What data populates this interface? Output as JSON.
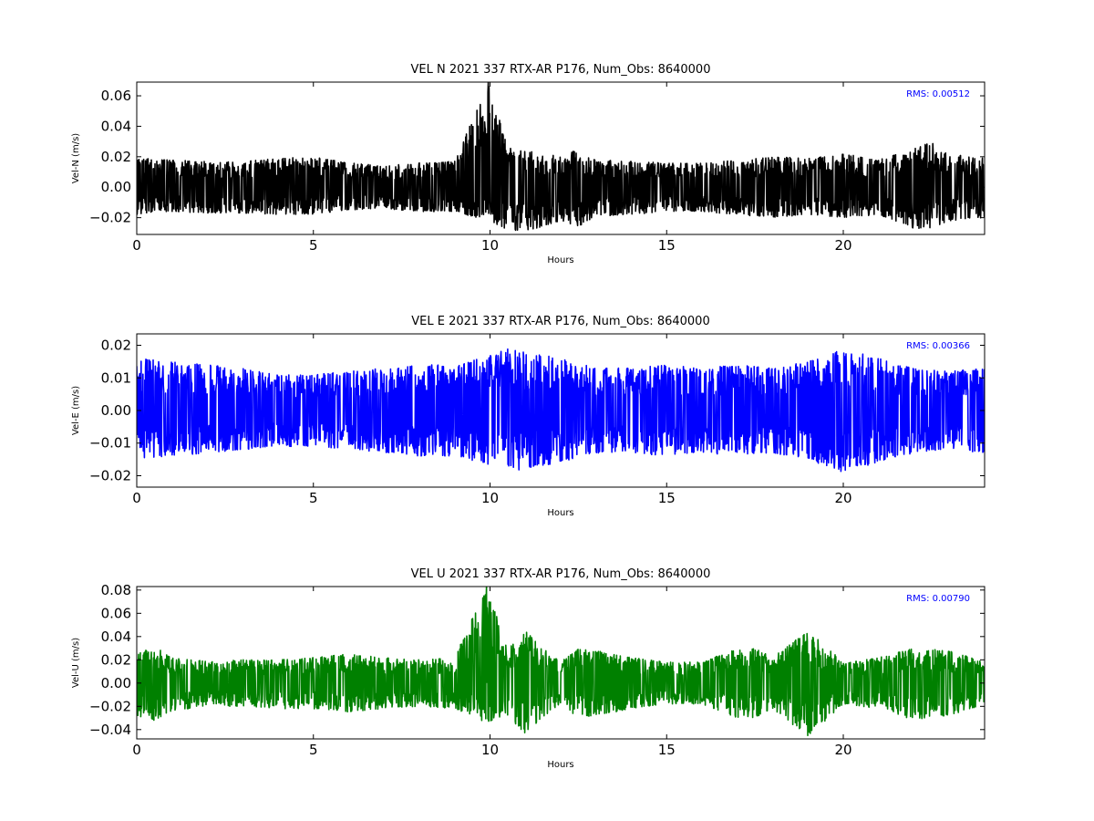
{
  "chart_data": [
    {
      "type": "line",
      "title": "VEL N 2021 337 RTX-AR  P176, Num_Obs: 8640000",
      "xlabel": "Hours",
      "ylabel": "Vel-N (m/s)",
      "xlim": [
        0,
        24
      ],
      "ylim": [
        -0.031,
        0.069
      ],
      "xticks": [
        0,
        5,
        10,
        15,
        20
      ],
      "xtick_labels": [
        "0",
        "5",
        "10",
        "15",
        "20"
      ],
      "yticks": [
        -0.02,
        0.0,
        0.02,
        0.04,
        0.06
      ],
      "ytick_labels": [
        "−0.02",
        "0.00",
        "0.02",
        "0.04",
        "0.06"
      ],
      "color": "#000000",
      "annotation": "RMS:  0.00512",
      "envelope": {
        "x": [
          0,
          1,
          2,
          3,
          4,
          5,
          6,
          7,
          8,
          9,
          9.95,
          10.5,
          11,
          12,
          12.5,
          13,
          14,
          15,
          16,
          17,
          18,
          19,
          20,
          21,
          22,
          22.5,
          23,
          24
        ],
        "max": [
          0.019,
          0.018,
          0.017,
          0.017,
          0.019,
          0.02,
          0.016,
          0.014,
          0.016,
          0.017,
          0.069,
          0.027,
          0.024,
          0.02,
          0.025,
          0.018,
          0.017,
          0.016,
          0.016,
          0.018,
          0.02,
          0.019,
          0.022,
          0.018,
          0.026,
          0.03,
          0.022,
          0.019
        ],
        "min": [
          -0.018,
          -0.016,
          -0.017,
          -0.017,
          -0.018,
          -0.018,
          -0.015,
          -0.014,
          -0.016,
          -0.016,
          -0.022,
          -0.028,
          -0.03,
          -0.022,
          -0.026,
          -0.019,
          -0.018,
          -0.016,
          -0.016,
          -0.018,
          -0.02,
          -0.018,
          -0.02,
          -0.018,
          -0.027,
          -0.027,
          -0.022,
          -0.02
        ]
      }
    },
    {
      "type": "line",
      "title": "VEL E 2021 337 RTX-AR  P176, Num_Obs: 8640000",
      "xlabel": "Hours",
      "ylabel": "Vel-E (m/s)",
      "xlim": [
        0,
        24
      ],
      "ylim": [
        -0.0235,
        0.0235
      ],
      "xticks": [
        0,
        5,
        10,
        15,
        20
      ],
      "xtick_labels": [
        "0",
        "5",
        "10",
        "15",
        "20"
      ],
      "yticks": [
        -0.02,
        -0.01,
        0.0,
        0.01,
        0.02
      ],
      "ytick_labels": [
        "−0.02",
        "−0.01",
        "0.00",
        "0.01",
        "0.02"
      ],
      "color": "#0000ff",
      "annotation": "RMS:  0.00366",
      "envelope": {
        "x": [
          0,
          1,
          2,
          3,
          4,
          5,
          6,
          7,
          8,
          9,
          10,
          10.5,
          11,
          12,
          13,
          14,
          15,
          16,
          17,
          18,
          19,
          20,
          21,
          22,
          23,
          24
        ],
        "max": [
          0.016,
          0.015,
          0.014,
          0.013,
          0.011,
          0.011,
          0.012,
          0.013,
          0.014,
          0.014,
          0.017,
          0.019,
          0.018,
          0.016,
          0.013,
          0.013,
          0.014,
          0.013,
          0.014,
          0.013,
          0.015,
          0.019,
          0.016,
          0.013,
          0.012,
          0.013
        ],
        "min": [
          -0.015,
          -0.014,
          -0.013,
          -0.012,
          -0.011,
          -0.011,
          -0.012,
          -0.013,
          -0.014,
          -0.014,
          -0.017,
          -0.019,
          -0.018,
          -0.016,
          -0.013,
          -0.013,
          -0.014,
          -0.013,
          -0.014,
          -0.013,
          -0.015,
          -0.019,
          -0.016,
          -0.013,
          -0.012,
          -0.013
        ]
      }
    },
    {
      "type": "line",
      "title": "VEL U 2021 337 RTX-AR  P176, Num_Obs: 8640000",
      "xlabel": "Hours",
      "ylabel": "Vel-U (m/s)",
      "xlim": [
        0,
        24
      ],
      "ylim": [
        -0.048,
        0.083
      ],
      "xticks": [
        0,
        5,
        10,
        15,
        20
      ],
      "xtick_labels": [
        "0",
        "5",
        "10",
        "15",
        "20"
      ],
      "yticks": [
        -0.04,
        -0.02,
        0.0,
        0.02,
        0.04,
        0.06,
        0.08
      ],
      "ytick_labels": [
        "−0.04",
        "−0.02",
        "0.00",
        "0.02",
        "0.04",
        "0.06",
        "0.08"
      ],
      "color": "#008000",
      "annotation": "RMS:  0.00790",
      "envelope": {
        "x": [
          0,
          0.5,
          1,
          2,
          3,
          4,
          5,
          6,
          7,
          8,
          9,
          9.9,
          10.5,
          11,
          11.5,
          12,
          12.5,
          13,
          14,
          15,
          16,
          17,
          17.5,
          18,
          19,
          19.5,
          20,
          21,
          22,
          23,
          24
        ],
        "max": [
          0.025,
          0.032,
          0.022,
          0.019,
          0.02,
          0.02,
          0.022,
          0.025,
          0.022,
          0.02,
          0.022,
          0.083,
          0.03,
          0.045,
          0.03,
          0.018,
          0.03,
          0.028,
          0.022,
          0.018,
          0.018,
          0.03,
          0.03,
          0.022,
          0.045,
          0.032,
          0.018,
          0.022,
          0.03,
          0.028,
          0.018
        ],
        "min": [
          -0.028,
          -0.033,
          -0.024,
          -0.02,
          -0.02,
          -0.022,
          -0.022,
          -0.025,
          -0.022,
          -0.02,
          -0.022,
          -0.034,
          -0.03,
          -0.044,
          -0.03,
          -0.018,
          -0.03,
          -0.028,
          -0.022,
          -0.018,
          -0.018,
          -0.03,
          -0.03,
          -0.022,
          -0.046,
          -0.032,
          -0.018,
          -0.022,
          -0.032,
          -0.028,
          -0.018
        ]
      }
    }
  ]
}
